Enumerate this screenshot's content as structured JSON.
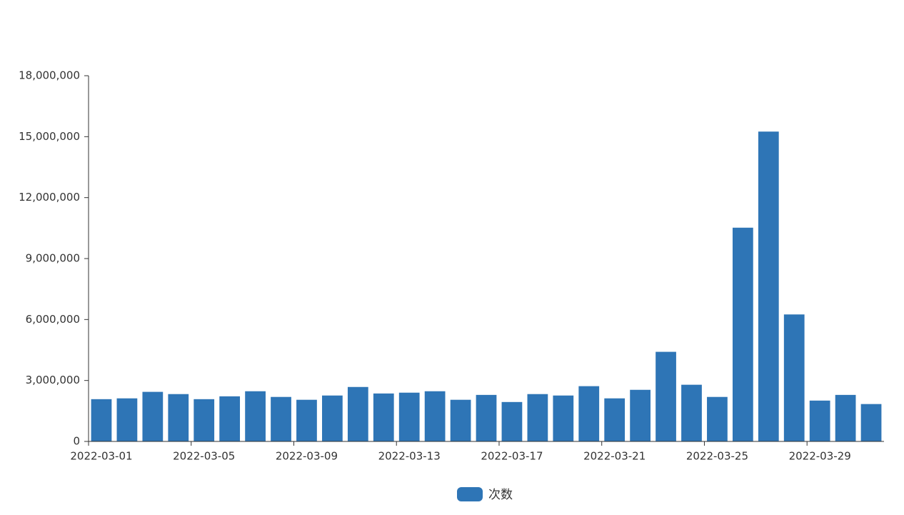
{
  "chart_data": {
    "type": "bar",
    "categories": [
      "2022-03-01",
      null,
      null,
      null,
      "2022-03-05",
      null,
      null,
      null,
      "2022-03-09",
      null,
      null,
      null,
      "2022-03-13",
      null,
      null,
      null,
      "2022-03-17",
      null,
      null,
      null,
      "2022-03-21",
      null,
      null,
      null,
      "2022-03-25",
      null,
      null,
      null,
      "2022-03-29",
      null,
      null
    ],
    "series": [
      {
        "name": "次数",
        "color": "#2e75b6",
        "values": [
          2080000,
          2120000,
          2440000,
          2330000,
          2080000,
          2220000,
          2470000,
          2190000,
          2050000,
          2260000,
          2680000,
          2360000,
          2400000,
          2470000,
          2050000,
          2290000,
          1940000,
          2330000,
          2260000,
          2720000,
          2120000,
          2540000,
          4410000,
          2790000,
          2190000,
          10520000,
          15250000,
          6250000,
          2010000,
          2290000,
          1840000
        ]
      }
    ],
    "ylim": [
      0,
      18000000
    ],
    "yticks": [
      0,
      {
        "value": 3000000,
        "label": "3,000,000"
      },
      {
        "value": 6000000,
        "label": "6,000,000"
      },
      {
        "value": 9000000,
        "label": "9,000,000"
      },
      {
        "value": 12000000,
        "label": "12,000,000"
      },
      {
        "value": 15000000,
        "label": "15,000,000"
      },
      {
        "value": 18000000,
        "label": "18,000,000"
      }
    ],
    "grid": false,
    "legend": "bottom"
  }
}
